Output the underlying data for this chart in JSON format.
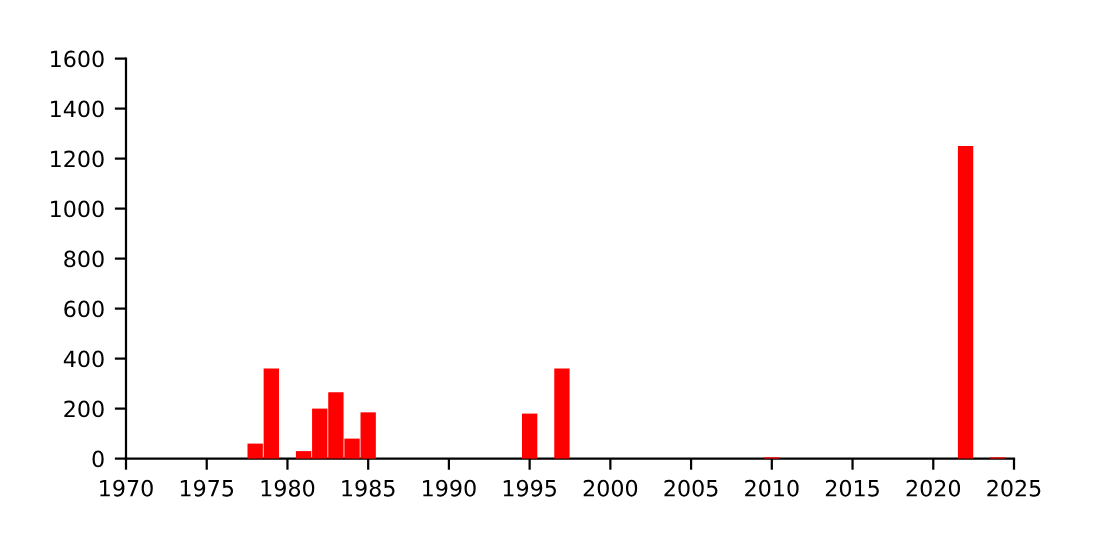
{
  "chart_data": {
    "type": "bar",
    "x": [
      1978,
      1979,
      1981,
      1982,
      1983,
      1984,
      1985,
      1995,
      1997,
      2010,
      2022,
      2024
    ],
    "values": [
      60,
      360,
      30,
      200,
      265,
      80,
      185,
      180,
      360,
      5,
      1250,
      5
    ],
    "color": "#ff0000",
    "xlim": [
      1970,
      2025
    ],
    "xticks": [
      1970,
      1975,
      1980,
      1985,
      1990,
      1995,
      2000,
      2005,
      2010,
      2015,
      2020,
      2025
    ],
    "ylim": [
      0,
      1600
    ],
    "yticks": [
      0,
      200,
      400,
      600,
      800,
      1000,
      1200,
      1400,
      1600
    ],
    "grid": false,
    "legend": false
  }
}
